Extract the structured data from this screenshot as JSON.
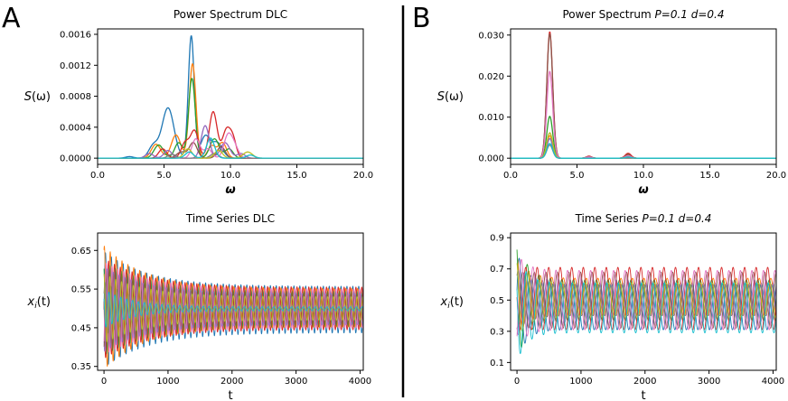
{
  "colors": {
    "palette": [
      "#1f77b4",
      "#ff7f0e",
      "#2ca02c",
      "#d62728",
      "#9467bd",
      "#8c564b",
      "#e377c2",
      "#7f7f7f",
      "#bcbd22",
      "#17becf"
    ],
    "divider": "#000000",
    "axes": "#000000"
  },
  "panel_letters": [
    "A",
    "B"
  ],
  "chart_data": [
    {
      "id": "A-spectrum",
      "type": "line",
      "title": "Power Spectrum DLC",
      "xlabel": "ω",
      "ylabel": "S(ω)",
      "xlim": [
        0,
        20
      ],
      "ylim": [
        -8e-05,
        0.00167
      ],
      "xticks": [
        0,
        5,
        10,
        15,
        20
      ],
      "xtick_labels": [
        "0.0",
        "5.0",
        "10.0",
        "15.0",
        "20.0"
      ],
      "yticks": [
        0,
        0.0004,
        0.0008,
        0.0012,
        0.0016
      ],
      "ytick_labels": [
        "0.0000",
        "0.0004",
        "0.0008",
        "0.0012",
        "0.0016"
      ],
      "grid": false,
      "series": [
        {
          "peaks": [
            [
              2.4,
              2e-05,
              0.3
            ],
            [
              4.2,
              0.00016,
              0.35
            ],
            [
              5.3,
              0.00065,
              0.45
            ],
            [
              7.05,
              0.00158,
              0.22
            ],
            [
              8.1,
              0.00028,
              0.35
            ],
            [
              9.0,
              0.0002,
              0.4
            ]
          ]
        },
        {
          "peaks": [
            [
              4.4,
              0.00018,
              0.35
            ],
            [
              5.9,
              0.0003,
              0.35
            ],
            [
              7.15,
              0.00122,
              0.25
            ],
            [
              8.6,
              0.00016,
              0.3
            ],
            [
              9.4,
              0.0002,
              0.3
            ]
          ]
        },
        {
          "peaks": [
            [
              4.6,
              0.00017,
              0.35
            ],
            [
              6.1,
              0.0002,
              0.3
            ],
            [
              7.1,
              0.00103,
              0.25
            ],
            [
              8.8,
              0.00025,
              0.35
            ],
            [
              9.9,
              0.00012,
              0.3
            ]
          ]
        },
        {
          "peaks": [
            [
              4.9,
              0.00012,
              0.3
            ],
            [
              6.6,
              0.0002,
              0.3
            ],
            [
              7.3,
              0.00035,
              0.3
            ],
            [
              8.7,
              0.0006,
              0.3
            ],
            [
              9.7,
              0.00036,
              0.3
            ],
            [
              10.2,
              0.00022,
              0.25
            ]
          ]
        },
        {
          "peaks": [
            [
              3.9,
              6e-05,
              0.3
            ],
            [
              5.3,
              0.0001,
              0.3
            ],
            [
              8.1,
              0.00042,
              0.3
            ],
            [
              9.6,
              0.0002,
              0.35
            ],
            [
              10.8,
              6e-05,
              0.3
            ]
          ]
        },
        {
          "peaks": [
            [
              6.3,
              8e-05,
              0.35
            ],
            [
              7.2,
              0.0002,
              0.3
            ],
            [
              9.3,
              0.00015,
              0.3
            ]
          ]
        },
        {
          "peaks": [
            [
              7.4,
              0.00025,
              0.3
            ],
            [
              8.3,
              0.00012,
              0.3
            ],
            [
              9.8,
              0.00028,
              0.3
            ],
            [
              10.3,
              0.00015,
              0.3
            ]
          ]
        },
        {
          "peaks": [
            [
              5.6,
              5e-05,
              0.3
            ],
            [
              8.8,
              6e-05,
              0.3
            ]
          ]
        },
        {
          "peaks": [
            [
              6.8,
              0.00012,
              0.3
            ],
            [
              9.1,
              0.0001,
              0.3
            ],
            [
              11.3,
              8e-05,
              0.35
            ]
          ]
        },
        {
          "peaks": [
            [
              6.9,
              8e-05,
              0.3
            ],
            [
              8.5,
              0.00026,
              0.3
            ],
            [
              11.5,
              4e-05,
              0.3
            ]
          ]
        }
      ]
    },
    {
      "id": "B-spectrum",
      "type": "line",
      "title": "Power Spectrum P=0.1 d=0.4",
      "title_parts": {
        "plain": "Power Spectrum ",
        "italic": "P=0.1 d=0.4"
      },
      "xlabel": "ω",
      "ylabel": "S(ω)",
      "xlim": [
        0,
        20
      ],
      "ylim": [
        -0.0015,
        0.0315
      ],
      "xticks": [
        0,
        5,
        10,
        15,
        20
      ],
      "xtick_labels": [
        "0.0",
        "5.0",
        "10.0",
        "15.0",
        "20.0"
      ],
      "yticks": [
        0,
        0.01,
        0.02,
        0.03
      ],
      "ytick_labels": [
        "0.000",
        "0.010",
        "0.020",
        "0.030"
      ],
      "grid": false,
      "series": [
        {
          "peaks": [
            [
              2.95,
              0.0048,
              0.22
            ],
            [
              5.9,
              0.0003,
              0.2
            ],
            [
              8.85,
              0.0005,
              0.22
            ]
          ]
        },
        {
          "peaks": [
            [
              2.95,
              0.0055,
              0.22
            ],
            [
              5.9,
              0.0003,
              0.2
            ],
            [
              8.85,
              0.0007,
              0.22
            ]
          ]
        },
        {
          "peaks": [
            [
              2.95,
              0.0102,
              0.22
            ],
            [
              5.9,
              0.0004,
              0.2
            ],
            [
              8.85,
              0.0009,
              0.22
            ]
          ]
        },
        {
          "peaks": [
            [
              2.95,
              0.0308,
              0.22
            ],
            [
              5.9,
              0.0005,
              0.2
            ],
            [
              8.85,
              0.0012,
              0.22
            ]
          ]
        },
        {
          "peaks": [
            [
              2.95,
              0.0048,
              0.22
            ],
            [
              8.85,
              0.0004,
              0.22
            ]
          ]
        },
        {
          "peaks": [
            [
              2.95,
              0.0303,
              0.22
            ],
            [
              5.9,
              0.0004,
              0.2
            ],
            [
              8.85,
              0.0008,
              0.22
            ]
          ]
        },
        {
          "peaks": [
            [
              2.95,
              0.0212,
              0.22
            ],
            [
              5.9,
              0.0003,
              0.2
            ],
            [
              8.85,
              0.0006,
              0.22
            ]
          ]
        },
        {
          "peaks": [
            [
              2.95,
              0.0032,
              0.22
            ]
          ]
        },
        {
          "peaks": [
            [
              2.95,
              0.0062,
              0.22
            ],
            [
              8.85,
              0.0003,
              0.22
            ]
          ]
        },
        {
          "peaks": [
            [
              2.95,
              0.0036,
              0.22
            ],
            [
              8.85,
              0.0003,
              0.22
            ]
          ]
        }
      ]
    },
    {
      "id": "A-timeseries",
      "type": "line",
      "title": "Time Series DLC",
      "xlabel": "t",
      "ylabel": "x_i(t)",
      "xlim": [
        -100,
        4050
      ],
      "ylim": [
        0.34,
        0.695
      ],
      "xticks": [
        0,
        1000,
        2000,
        3000,
        4000
      ],
      "xtick_labels": [
        "0",
        "1000",
        "2000",
        "3000",
        "4000"
      ],
      "yticks": [
        0.35,
        0.45,
        0.55,
        0.65
      ],
      "ytick_labels": [
        "0.35",
        "0.45",
        "0.55",
        "0.65"
      ],
      "grid": false,
      "series": [
        {
          "base": 0.497,
          "amp0": 0.15,
          "ampEnd": 0.06,
          "tau": 700,
          "period": 92,
          "phase": 0.0
        },
        {
          "base": 0.502,
          "amp0": 0.16,
          "ampEnd": 0.05,
          "tau": 650,
          "period": 92,
          "phase": 1.2
        },
        {
          "base": 0.499,
          "amp0": 0.12,
          "ampEnd": 0.045,
          "tau": 750,
          "period": 92,
          "phase": 2.1
        },
        {
          "base": 0.5,
          "amp0": 0.13,
          "ampEnd": 0.055,
          "tau": 700,
          "period": 92,
          "phase": 3.0
        },
        {
          "base": 0.498,
          "amp0": 0.11,
          "ampEnd": 0.04,
          "tau": 650,
          "period": 92,
          "phase": 4.0
        },
        {
          "base": 0.501,
          "amp0": 0.1,
          "ampEnd": 0.035,
          "tau": 700,
          "period": 92,
          "phase": 4.8
        },
        {
          "base": 0.5,
          "amp0": 0.12,
          "ampEnd": 0.05,
          "tau": 720,
          "period": 92,
          "phase": 5.5
        },
        {
          "base": 0.499,
          "amp0": 0.07,
          "ampEnd": 0.01,
          "tau": 500,
          "period": 92,
          "phase": 0.6
        },
        {
          "base": 0.5,
          "amp0": 0.09,
          "ampEnd": 0.03,
          "tau": 650,
          "period": 92,
          "phase": 1.7
        },
        {
          "base": 0.499,
          "amp0": 0.05,
          "ampEnd": 0.005,
          "tau": 450,
          "period": 92,
          "phase": 2.6
        }
      ]
    },
    {
      "id": "B-timeseries",
      "type": "line",
      "title": "Time Series P=0.1 d=0.4",
      "title_parts": {
        "plain": "Time Series ",
        "italic": "P=0.1 d=0.4"
      },
      "xlabel": "t",
      "ylabel": "x_i(t)",
      "xlim": [
        -100,
        4050
      ],
      "ylim": [
        0.05,
        0.93
      ],
      "xticks": [
        0,
        1000,
        2000,
        3000,
        4000
      ],
      "xtick_labels": [
        "0",
        "1000",
        "2000",
        "3000",
        "4000"
      ],
      "yticks": [
        0.1,
        0.3,
        0.5,
        0.7,
        0.9
      ],
      "ytick_labels": [
        "0.1",
        "0.3",
        "0.5",
        "0.7",
        "0.9"
      ],
      "grid": false,
      "series": [
        {
          "base": 0.46,
          "amp0": 0.35,
          "ampEnd": 0.15,
          "tau": 150,
          "period": 180,
          "phase": 0.3
        },
        {
          "base": 0.52,
          "amp0": 0.25,
          "ampEnd": 0.12,
          "tau": 180,
          "period": 180,
          "phase": 1.4
        },
        {
          "base": 0.5,
          "amp0": 0.4,
          "ampEnd": 0.13,
          "tau": 160,
          "period": 180,
          "phase": 2.2
        },
        {
          "base": 0.51,
          "amp0": 0.2,
          "ampEnd": 0.2,
          "tau": 200,
          "period": 180,
          "phase": 3.1
        },
        {
          "base": 0.49,
          "amp0": 0.22,
          "ampEnd": 0.14,
          "tau": 170,
          "period": 180,
          "phase": 4.0
        },
        {
          "base": 0.5,
          "amp0": 0.18,
          "ampEnd": 0.18,
          "tau": 200,
          "period": 180,
          "phase": 4.7
        },
        {
          "base": 0.5,
          "amp0": 0.3,
          "ampEnd": 0.19,
          "tau": 160,
          "period": 180,
          "phase": 5.4
        },
        {
          "base": 0.5,
          "amp0": 0.2,
          "ampEnd": 0.1,
          "tau": 180,
          "period": 180,
          "phase": 0.9
        },
        {
          "base": 0.5,
          "amp0": 0.25,
          "ampEnd": 0.11,
          "tau": 170,
          "period": 180,
          "phase": 1.9
        },
        {
          "base": 0.45,
          "amp0": 0.35,
          "ampEnd": 0.16,
          "tau": 150,
          "period": 180,
          "phase": 2.8
        }
      ]
    }
  ]
}
